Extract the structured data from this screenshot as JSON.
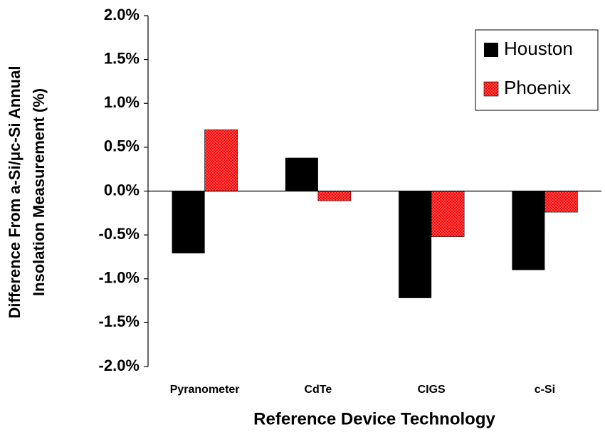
{
  "chart_data": {
    "type": "bar",
    "ylabel": [
      "Difference From a-Si/μc-Si Annual",
      "Insolation Measurement (%)"
    ],
    "xlabel": "Reference Device Technology",
    "categories": [
      "Pyranometer",
      "CdTe",
      "CIGS",
      "c-Si"
    ],
    "series": [
      {
        "name": "Houston",
        "color": "#000000",
        "values": [
          -0.71,
          0.38,
          -1.22,
          -0.9
        ]
      },
      {
        "name": "Phoenix",
        "color": "#ff0000",
        "pattern": "dotted",
        "values": [
          0.7,
          -0.11,
          -0.52,
          -0.24
        ]
      }
    ],
    "ylim": [
      -2,
      2
    ],
    "yticks": [
      {
        "value": 2,
        "label": "2.0%"
      },
      {
        "value": 1.5,
        "label": "1.5%"
      },
      {
        "value": 1,
        "label": "1.0%"
      },
      {
        "value": 0.5,
        "label": "0.5%"
      },
      {
        "value": 0,
        "label": "0.0%"
      },
      {
        "value": -0.5,
        "label": "-0.5%"
      },
      {
        "value": -1,
        "label": "-1.0%"
      },
      {
        "value": -1.5,
        "label": "-1.5%"
      },
      {
        "value": -2,
        "label": "-2.0%"
      }
    ],
    "legend": "upper-right"
  }
}
